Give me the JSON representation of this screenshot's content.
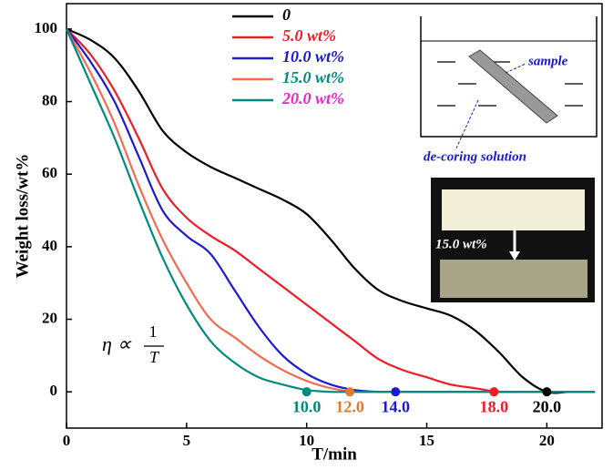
{
  "chart_data": {
    "type": "line",
    "x_label": "T/min",
    "y_label": "Weight loss/wt%",
    "x": [
      0,
      1,
      2,
      3,
      4,
      5,
      6,
      7,
      8,
      9,
      10,
      11,
      12,
      13,
      14,
      15,
      16,
      17,
      18,
      19,
      20,
      21,
      22
    ],
    "series": [
      {
        "name": "0",
        "color": "#000000",
        "label_color": "#000000",
        "values": [
          100,
          97,
          92,
          83,
          72,
          66,
          62,
          59,
          56,
          53,
          49,
          42,
          34,
          28,
          25,
          23,
          21,
          17,
          11,
          4,
          0,
          0,
          0
        ]
      },
      {
        "name": "5.0  wt%",
        "color": "#ee1c25",
        "label_color": "#ee1c25",
        "values": [
          100,
          93,
          83,
          70,
          56,
          48,
          43,
          39,
          34,
          29,
          24,
          19,
          14,
          9,
          6,
          4,
          2,
          1,
          0,
          0,
          0,
          0,
          0
        ]
      },
      {
        "name": "10.0 wt%",
        "color": "#1a1ad0",
        "label_color": "#1a1ad0",
        "values": [
          100,
          91,
          80,
          65,
          50,
          43,
          38,
          28,
          18,
          10,
          5,
          2,
          0.5,
          0,
          0,
          0,
          0,
          0,
          0,
          0,
          0,
          0,
          0
        ]
      },
      {
        "name": "15.0 wt%",
        "color": "#f26b50",
        "label_color": "#008a80",
        "values": [
          100,
          88,
          74,
          57,
          42,
          30,
          20,
          15,
          10,
          6,
          3,
          1,
          0,
          0,
          0,
          0,
          0,
          0,
          0,
          0,
          0,
          0,
          0
        ]
      },
      {
        "name": "20.0 wt%",
        "color": "#008a80",
        "label_color": "#ee22cc",
        "values": [
          100,
          85,
          70,
          53,
          37,
          24,
          14,
          8,
          4,
          2,
          0.5,
          0,
          0,
          0,
          0,
          0,
          0,
          0,
          0,
          0,
          0,
          0,
          0
        ]
      }
    ],
    "end_points": [
      {
        "x": 10,
        "y": 0,
        "label": "10.0",
        "color": "#008a80"
      },
      {
        "x": 11.8,
        "y": 0,
        "label": "12.0",
        "color": "#e07a30"
      },
      {
        "x": 13.7,
        "y": 0,
        "label": "14.0",
        "color": "#1a1ad0"
      },
      {
        "x": 17.8,
        "y": 0,
        "label": "18.0",
        "color": "#ee1c25"
      },
      {
        "x": 20,
        "y": 0,
        "label": "20.0",
        "color": "#000000"
      }
    ],
    "formula": {
      "lhs": "η ∝",
      "numerator": "1",
      "denominator": "T"
    },
    "inset_schematic": {
      "sample": "sample",
      "solution": "de-coring solution"
    },
    "inset_photo": {
      "label": "15.0 wt%"
    },
    "xlim": [
      0,
      22.3
    ],
    "ylim": [
      -10,
      107
    ],
    "xticks": [
      0,
      5,
      10,
      15,
      20
    ],
    "yticks": [
      0,
      20,
      40,
      60,
      80,
      100
    ],
    "grid": false
  }
}
